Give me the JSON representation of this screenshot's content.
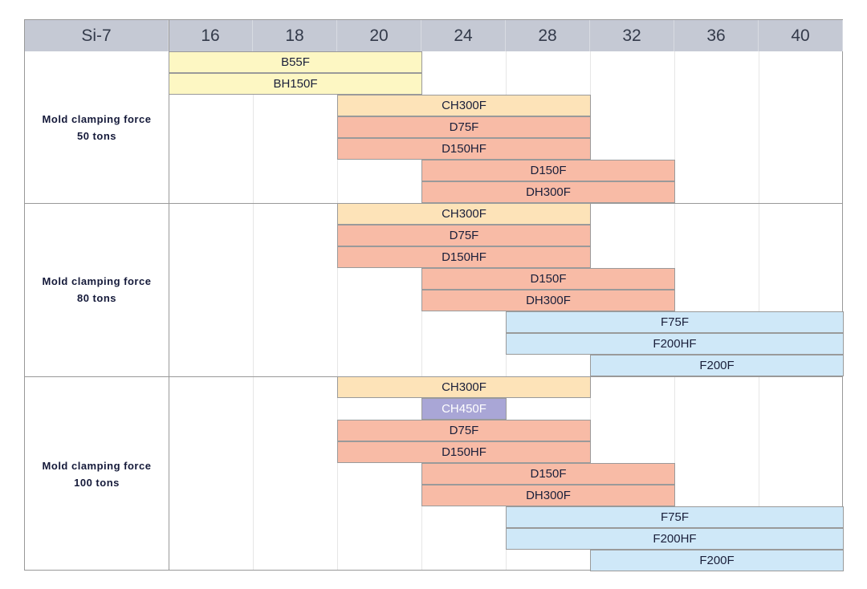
{
  "chart_data": {
    "type": "table",
    "title": "Si-7",
    "columns": [
      "16",
      "18",
      "20",
      "24",
      "28",
      "32",
      "36",
      "40"
    ],
    "colors": {
      "B": "#fdf7c3",
      "CH": "#fde3b8",
      "CH450": "#a9a6d6",
      "D": "#f8bba6",
      "F": "#cfe8f8",
      "header": "#c5c9d4"
    },
    "sections": [
      {
        "label_line1": "Mold clamping force",
        "label_line2": "50 tons",
        "rows": [
          {
            "name": "B55F",
            "from": "16",
            "to": "20",
            "color": "B"
          },
          {
            "name": "BH150F",
            "from": "16",
            "to": "20",
            "color": "B"
          },
          {
            "name": "CH300F",
            "from": "20",
            "to": "28",
            "color": "CH"
          },
          {
            "name": "D75F",
            "from": "20",
            "to": "28",
            "color": "D"
          },
          {
            "name": "D150HF",
            "from": "20",
            "to": "28",
            "color": "D"
          },
          {
            "name": "D150F",
            "from": "24",
            "to": "32",
            "color": "D"
          },
          {
            "name": "DH300F",
            "from": "24",
            "to": "32",
            "color": "D"
          }
        ]
      },
      {
        "label_line1": "Mold clamping force",
        "label_line2": "80 tons",
        "rows": [
          {
            "name": "CH300F",
            "from": "20",
            "to": "28",
            "color": "CH"
          },
          {
            "name": "D75F",
            "from": "20",
            "to": "28",
            "color": "D"
          },
          {
            "name": "D150HF",
            "from": "20",
            "to": "28",
            "color": "D"
          },
          {
            "name": "D150F",
            "from": "24",
            "to": "32",
            "color": "D"
          },
          {
            "name": "DH300F",
            "from": "24",
            "to": "32",
            "color": "D"
          },
          {
            "name": "F75F",
            "from": "28",
            "to": "40",
            "color": "F"
          },
          {
            "name": "F200HF",
            "from": "28",
            "to": "40",
            "color": "F"
          },
          {
            "name": "F200F",
            "from": "32",
            "to": "40",
            "color": "F"
          }
        ]
      },
      {
        "label_line1": "Mold clamping force",
        "label_line2": "100 tons",
        "rows": [
          {
            "name": "CH300F",
            "from": "20",
            "to": "28",
            "color": "CH"
          },
          {
            "name": "CH450F",
            "from": "24",
            "to": "24",
            "color": "CH450"
          },
          {
            "name": "D75F",
            "from": "20",
            "to": "28",
            "color": "D"
          },
          {
            "name": "D150HF",
            "from": "20",
            "to": "28",
            "color": "D"
          },
          {
            "name": "D150F",
            "from": "24",
            "to": "32",
            "color": "D"
          },
          {
            "name": "DH300F",
            "from": "24",
            "to": "32",
            "color": "D"
          },
          {
            "name": "F75F",
            "from": "28",
            "to": "40",
            "color": "F"
          },
          {
            "name": "F200HF",
            "from": "28",
            "to": "40",
            "color": "F"
          },
          {
            "name": "F200F",
            "from": "32",
            "to": "40",
            "color": "F"
          }
        ]
      }
    ]
  }
}
